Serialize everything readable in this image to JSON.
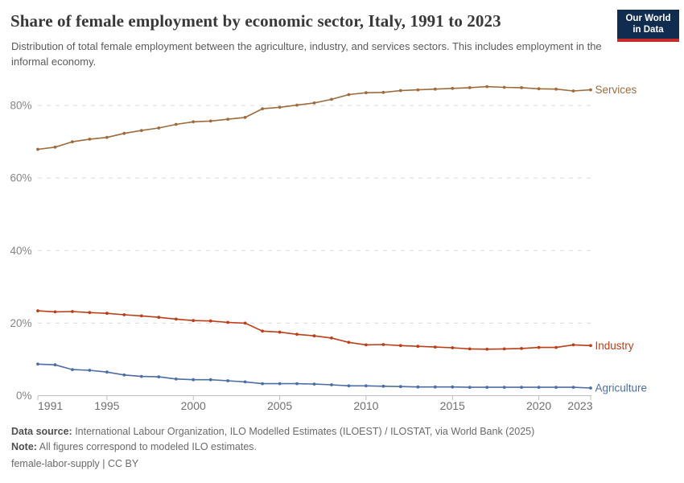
{
  "header": {
    "title": "Share of female employment by economic sector, Italy, 1991 to 2023",
    "subtitle": "Distribution of total female employment between the agriculture, industry, and services sectors. This includes employment in the informal economy.",
    "logo": {
      "line1": "Our World",
      "line2": "in Data",
      "bg_color": "#102D50",
      "accent_color": "#C62B27"
    }
  },
  "chart_data": {
    "type": "line",
    "title": "Share of female employment by economic sector, Italy, 1991 to 2023",
    "xlabel": "",
    "ylabel": "",
    "x": [
      1991,
      1992,
      1993,
      1994,
      1995,
      1996,
      1997,
      1998,
      1999,
      2000,
      2001,
      2002,
      2003,
      2004,
      2005,
      2006,
      2007,
      2008,
      2009,
      2010,
      2011,
      2012,
      2013,
      2014,
      2015,
      2016,
      2017,
      2018,
      2019,
      2020,
      2021,
      2022,
      2023
    ],
    "series": [
      {
        "name": "Services",
        "color": "#9E6B3C",
        "values": [
          67.9,
          68.5,
          70.0,
          70.7,
          71.2,
          72.3,
          73.1,
          73.8,
          74.8,
          75.5,
          75.7,
          76.2,
          76.7,
          79.1,
          79.5,
          80.1,
          80.7,
          81.7,
          83.0,
          83.5,
          83.6,
          84.1,
          84.3,
          84.5,
          84.7,
          84.9,
          85.2,
          85.0,
          84.9,
          84.6,
          84.5,
          84.0,
          84.3
        ]
      },
      {
        "name": "Industry",
        "color": "#BB3E18",
        "values": [
          23.4,
          23.1,
          23.2,
          22.9,
          22.7,
          22.3,
          22.0,
          21.6,
          21.1,
          20.7,
          20.6,
          20.2,
          20.0,
          17.8,
          17.5,
          16.9,
          16.5,
          15.9,
          14.7,
          14.0,
          14.1,
          13.8,
          13.6,
          13.4,
          13.2,
          12.9,
          12.8,
          12.9,
          13.0,
          13.3,
          13.3,
          14.0,
          13.8
        ]
      },
      {
        "name": "Agriculture",
        "color": "#4C6DA5",
        "values": [
          8.7,
          8.5,
          7.2,
          7.0,
          6.5,
          5.7,
          5.3,
          5.2,
          4.6,
          4.4,
          4.4,
          4.1,
          3.8,
          3.3,
          3.3,
          3.3,
          3.2,
          3.0,
          2.7,
          2.7,
          2.6,
          2.5,
          2.4,
          2.4,
          2.4,
          2.3,
          2.3,
          2.3,
          2.3,
          2.3,
          2.3,
          2.3,
          2.1
        ]
      }
    ],
    "ylim": [
      0,
      88
    ],
    "yticks": [
      0,
      20,
      40,
      60,
      80
    ],
    "ytick_suffix": "%",
    "xticks": [
      1991,
      1995,
      2000,
      2005,
      2010,
      2015,
      2020,
      2023
    ],
    "grid": "horizontal-dashed",
    "legend_position": "right-end-labels",
    "grid_color": "#dadada",
    "axis_color": "#bdbdbd",
    "ytick_label_color": "#868686",
    "xtick_label_color": "#6f6f6f"
  },
  "footer": {
    "data_source_label": "Data source:",
    "data_source": " International Labour Organization, ILO Modelled Estimates (ILOEST) / ILOSTAT, via World Bank (2025)",
    "note_label": "Note:",
    "note": " All figures correspond to modeled ILO estimates.",
    "attribution": "female-labor-supply | CC BY"
  }
}
